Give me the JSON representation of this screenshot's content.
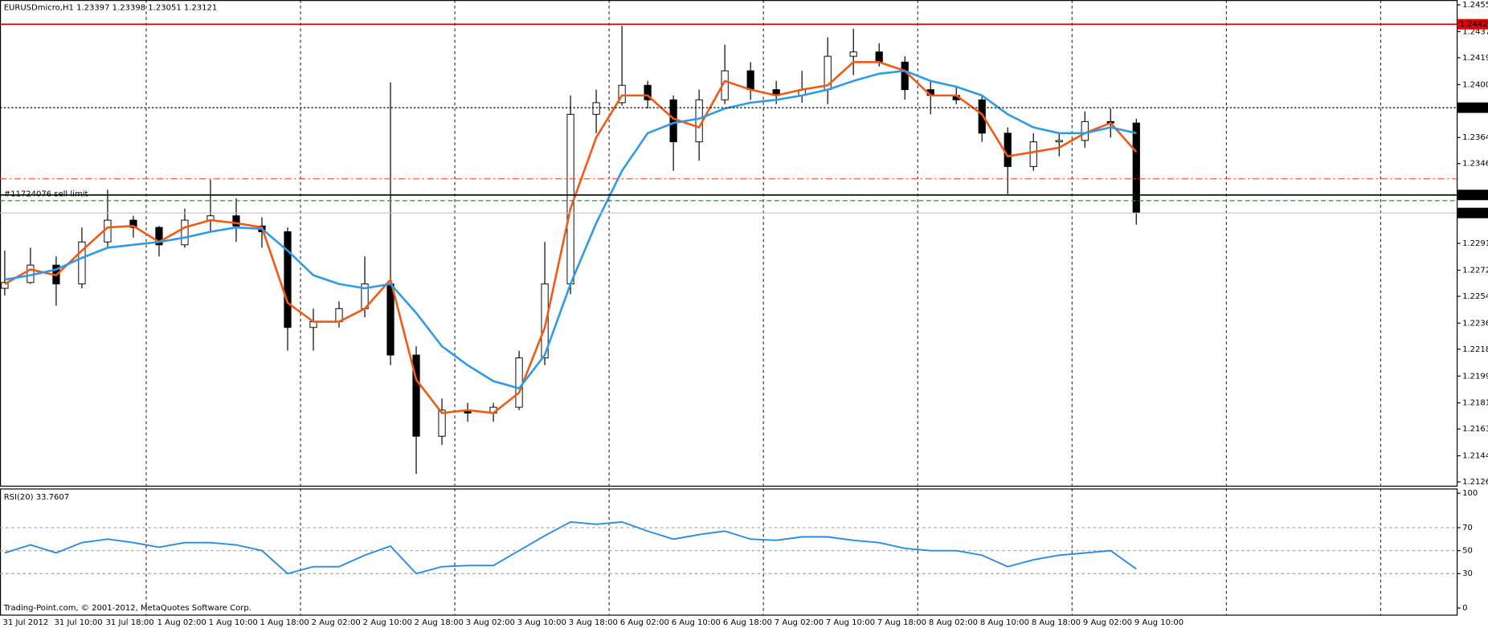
{
  "chart_data": [
    {
      "type": "candlestick",
      "title": "EURUSDmicro,H1  1.23397 1.23398 1.23051 1.23121",
      "categories": [
        "31 Jul 2012",
        null,
        "31 Jul 10:00",
        null,
        "31 Jul 18:00",
        null,
        "1 Aug 02:00",
        null,
        "1 Aug 10:00",
        null,
        "1 Aug 18:00",
        null,
        "2 Aug 02:00",
        null,
        "2 Aug 10:00",
        null,
        "2 Aug 18:00",
        null,
        "3 Aug 02:00",
        null,
        "3 Aug 10:00",
        null,
        "3 Aug 18:00",
        null,
        "6 Aug 02:00",
        null,
        "6 Aug 10:00",
        null,
        "6 Aug 18:00",
        null,
        "7 Aug 02:00",
        null,
        "7 Aug 10:00",
        null,
        "7 Aug 18:00",
        null,
        "8 Aug 02:00",
        null,
        "8 Aug 10:00",
        null,
        "8 Aug 18:00",
        null,
        "9 Aug 02:00",
        null,
        "9 Aug 10:00"
      ],
      "open": [
        1.226,
        1.2264,
        1.2276,
        1.2263,
        1.2292,
        1.2307,
        1.2302,
        1.229,
        1.2307,
        1.231,
        1.2303,
        1.2299,
        1.2233,
        1.2237,
        1.2246,
        1.2263,
        1.2214,
        1.2158,
        1.2176,
        1.2174,
        1.2178,
        1.2212,
        1.2263,
        1.238,
        1.2388,
        1.24,
        1.239,
        1.2361,
        1.239,
        1.241,
        1.2397,
        1.2393,
        1.2397,
        1.242,
        1.2423,
        1.2416,
        1.2397,
        1.2393,
        1.239,
        1.2367,
        1.2344,
        1.2361,
        1.2362,
        1.2375,
        1.2374
      ],
      "high": [
        1.2286,
        1.2288,
        1.2282,
        1.2302,
        1.2328,
        1.231,
        1.2303,
        1.2315,
        1.2335,
        1.2322,
        1.2309,
        1.2302,
        1.2246,
        1.2251,
        1.2282,
        1.2402,
        1.222,
        1.2184,
        1.2181,
        1.2181,
        1.2217,
        1.2292,
        1.2393,
        1.2397,
        1.2441,
        1.2403,
        1.2393,
        1.2397,
        1.2428,
        1.2416,
        1.2403,
        1.241,
        1.2433,
        1.2439,
        1.2429,
        1.242,
        1.2403,
        1.2399,
        1.2393,
        1.2371,
        1.2367,
        1.2367,
        1.2382,
        1.2384,
        1.2377
      ],
      "low": [
        1.2255,
        1.2263,
        1.2248,
        1.226,
        1.2288,
        1.2295,
        1.2282,
        1.2288,
        1.2299,
        1.2292,
        1.2288,
        1.2217,
        1.2217,
        1.2233,
        1.224,
        1.2207,
        1.2132,
        1.2152,
        1.2168,
        1.2168,
        1.2176,
        1.2207,
        1.2256,
        1.2367,
        1.2386,
        1.2384,
        1.2341,
        1.2348,
        1.2387,
        1.239,
        1.2387,
        1.2388,
        1.2387,
        1.2407,
        1.2413,
        1.239,
        1.238,
        1.2387,
        1.2361,
        1.2325,
        1.2341,
        1.2351,
        1.2357,
        1.2364,
        1.2304
      ],
      "close": [
        1.2264,
        1.2276,
        1.2263,
        1.2292,
        1.2307,
        1.2302,
        1.229,
        1.2307,
        1.231,
        1.2303,
        1.2299,
        1.2233,
        1.2237,
        1.2246,
        1.2263,
        1.2214,
        1.2158,
        1.2176,
        1.2174,
        1.2178,
        1.2212,
        1.2263,
        1.238,
        1.2388,
        1.24,
        1.239,
        1.2361,
        1.239,
        1.241,
        1.2397,
        1.2393,
        1.2397,
        1.242,
        1.2423,
        1.2416,
        1.2397,
        1.2393,
        1.239,
        1.2367,
        1.2344,
        1.2361,
        1.2362,
        1.2375,
        1.2374,
        1.23121
      ],
      "overlays": [
        {
          "color": "#f05a14",
          "values": [
            1.2263,
            1.2273,
            1.2269,
            1.2286,
            1.2302,
            1.2303,
            1.2292,
            1.2302,
            1.2307,
            1.2305,
            1.2302,
            1.225,
            1.2237,
            1.2237,
            1.2246,
            1.2266,
            1.2197,
            1.2174,
            1.2176,
            1.2174,
            1.2188,
            1.2233,
            1.2315,
            1.2364,
            1.2393,
            1.2393,
            1.2377,
            1.2371,
            1.2403,
            1.2397,
            1.2393,
            1.2397,
            1.24,
            1.2416,
            1.2416,
            1.241,
            1.2393,
            1.2393,
            1.238,
            1.2351,
            1.2354,
            1.2357,
            1.2367,
            1.2374,
            1.2354
          ]
        },
        {
          "color": "#2f9ae6",
          "values": [
            1.2266,
            1.2269,
            1.2273,
            1.2281,
            1.2288,
            1.229,
            1.2292,
            1.2295,
            1.2299,
            1.2302,
            1.2301,
            1.2286,
            1.2269,
            1.2263,
            1.226,
            1.2263,
            1.2243,
            1.222,
            1.2207,
            1.2196,
            1.2191,
            1.2214,
            1.2263,
            1.2305,
            1.2341,
            1.2367,
            1.2374,
            1.2377,
            1.2384,
            1.2388,
            1.239,
            1.2393,
            1.2397,
            1.2403,
            1.2408,
            1.241,
            1.2403,
            1.2399,
            1.2393,
            1.238,
            1.2371,
            1.2367,
            1.2367,
            1.2371,
            1.2367
          ]
        }
      ],
      "levels": [
        {
          "value": 1.24425,
          "color": "#e00000",
          "style": "solid",
          "axis_tag": true
        },
        {
          "value": 1.2385,
          "label": "1.23850",
          "color": "#000000",
          "style": "dotted",
          "axis_tag": true
        },
        {
          "value": 1.23358,
          "color": "#f05030",
          "style": "dashdot"
        },
        {
          "value": 1.2325,
          "label": "1.23250",
          "color": "#000000",
          "style": "solid",
          "axis_tag": true,
          "text": "#11724076 sell limit"
        },
        {
          "value": 1.23208,
          "color": "#3a8a3a",
          "style": "dashed"
        },
        {
          "value": 1.23121,
          "color": "#c0c0c0",
          "style": "solid",
          "axis_tag": true
        }
      ],
      "ylim": [
        1.21239,
        1.24588
      ],
      "yticks": [
        1.24555,
        {
          "value": 1.2437,
          "label": "1.24370"
        },
        {
          "value": 1.2419,
          "label": "1.24190"
        },
        {
          "value": 1.24005,
          "label": "1.24005"
        },
        {
          "value": 1.2364,
          "label": "1.23640"
        },
        {
          "value": 1.2346,
          "label": "1.23460"
        },
        {
          "value": 1.2291,
          "label": "1.22910"
        },
        1.22725,
        1.22545,
        {
          "value": 1.2236,
          "label": "1.22360"
        },
        {
          "value": 1.2218,
          "label": "1.22180"
        },
        1.21995,
        {
          "value": 1.2181,
          "label": "1.21810"
        },
        {
          "value": 1.2163,
          "label": "1.21630"
        },
        1.21445,
        1.21265
      ]
    },
    {
      "type": "line",
      "title": "RSI(20) 33.7607",
      "color": "#2a8ce0",
      "values": [
        48,
        55,
        48,
        57,
        60,
        57,
        53,
        57,
        57,
        55,
        50,
        30,
        36,
        36,
        46,
        54,
        30,
        36,
        37,
        37,
        50,
        63,
        75,
        73,
        75,
        67,
        60,
        64,
        67,
        60,
        59,
        62,
        62,
        59,
        57,
        52,
        50,
        50,
        46,
        36,
        42,
        46,
        48,
        50,
        34
      ],
      "levels": [
        70,
        50,
        30
      ],
      "ylim": [
        -5.8,
        104.1
      ],
      "yticks": [
        100,
        70,
        50,
        30,
        0
      ]
    }
  ],
  "footer": "Trading-Point.com, © 2001-2012, MetaQuotes Software Corp."
}
